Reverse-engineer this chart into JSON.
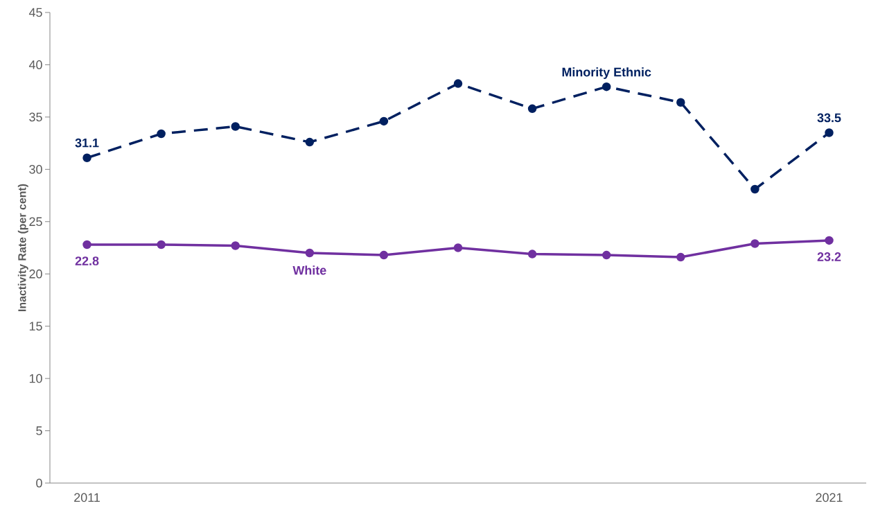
{
  "chart_data": {
    "type": "line",
    "ylabel": "Inactivity Rate (per cent)",
    "categories": [
      "2011",
      null,
      null,
      null,
      null,
      null,
      null,
      null,
      null,
      null,
      "2021"
    ],
    "ylim": [
      0,
      45
    ],
    "yticks": [
      0,
      5,
      10,
      15,
      20,
      25,
      30,
      35,
      40,
      45
    ],
    "marker": "circle",
    "series": [
      {
        "name": "Minority Ethnic",
        "color": "#002060",
        "line_style": "dashed",
        "values": [
          31.1,
          33.4,
          34.1,
          32.6,
          34.6,
          38.2,
          35.8,
          37.9,
          36.4,
          28.1,
          33.5
        ],
        "value_labels": [
          "31.1",
          null,
          null,
          null,
          null,
          null,
          null,
          null,
          null,
          null,
          "33.5"
        ]
      },
      {
        "name": "White",
        "color": "#7030a0",
        "line_style": "solid",
        "values": [
          22.8,
          22.8,
          22.7,
          22.0,
          21.8,
          22.5,
          21.9,
          21.8,
          21.6,
          22.9,
          23.2
        ],
        "value_labels": [
          "22.8",
          null,
          null,
          null,
          null,
          null,
          null,
          null,
          null,
          null,
          "23.2"
        ]
      }
    ]
  }
}
